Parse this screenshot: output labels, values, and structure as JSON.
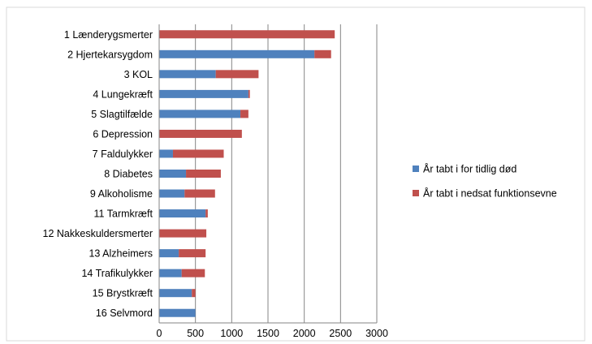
{
  "chart_data": {
    "type": "bar",
    "orientation": "horizontal",
    "stacked": true,
    "categories": [
      "1 Lænderygsmerter",
      "2 Hjertekarsygdom",
      "3 KOL",
      "4 Lungekræft",
      "5 Slagtilfælde",
      "6 Depression",
      "7 Faldulykker",
      "8 Diabetes",
      "9 Alkoholisme",
      "11 Tarmkræft",
      "12 Nakkeskuldersmerter",
      "13 Alzheimers",
      "14 Trafikulykker",
      "15 Brystkræft",
      "16 Selvmord"
    ],
    "series": [
      {
        "name": "År tabt i for tidlig død",
        "color": "#4f81bd",
        "values": [
          0,
          2140,
          780,
          1230,
          1120,
          0,
          190,
          370,
          350,
          640,
          0,
          270,
          310,
          450,
          500
        ]
      },
      {
        "name": "År tabt i nedsat funktionsevne",
        "color": "#c0504d",
        "values": [
          2420,
          230,
          590,
          20,
          110,
          1140,
          700,
          480,
          420,
          30,
          650,
          370,
          320,
          50,
          0
        ]
      }
    ],
    "xlim": [
      0,
      3000
    ],
    "xticks": [
      "0",
      "500",
      "1000",
      "1500",
      "2000",
      "2500",
      "3000"
    ],
    "grid": "vertical",
    "legend_position": "right",
    "title": "",
    "xlabel": "",
    "ylabel": ""
  }
}
